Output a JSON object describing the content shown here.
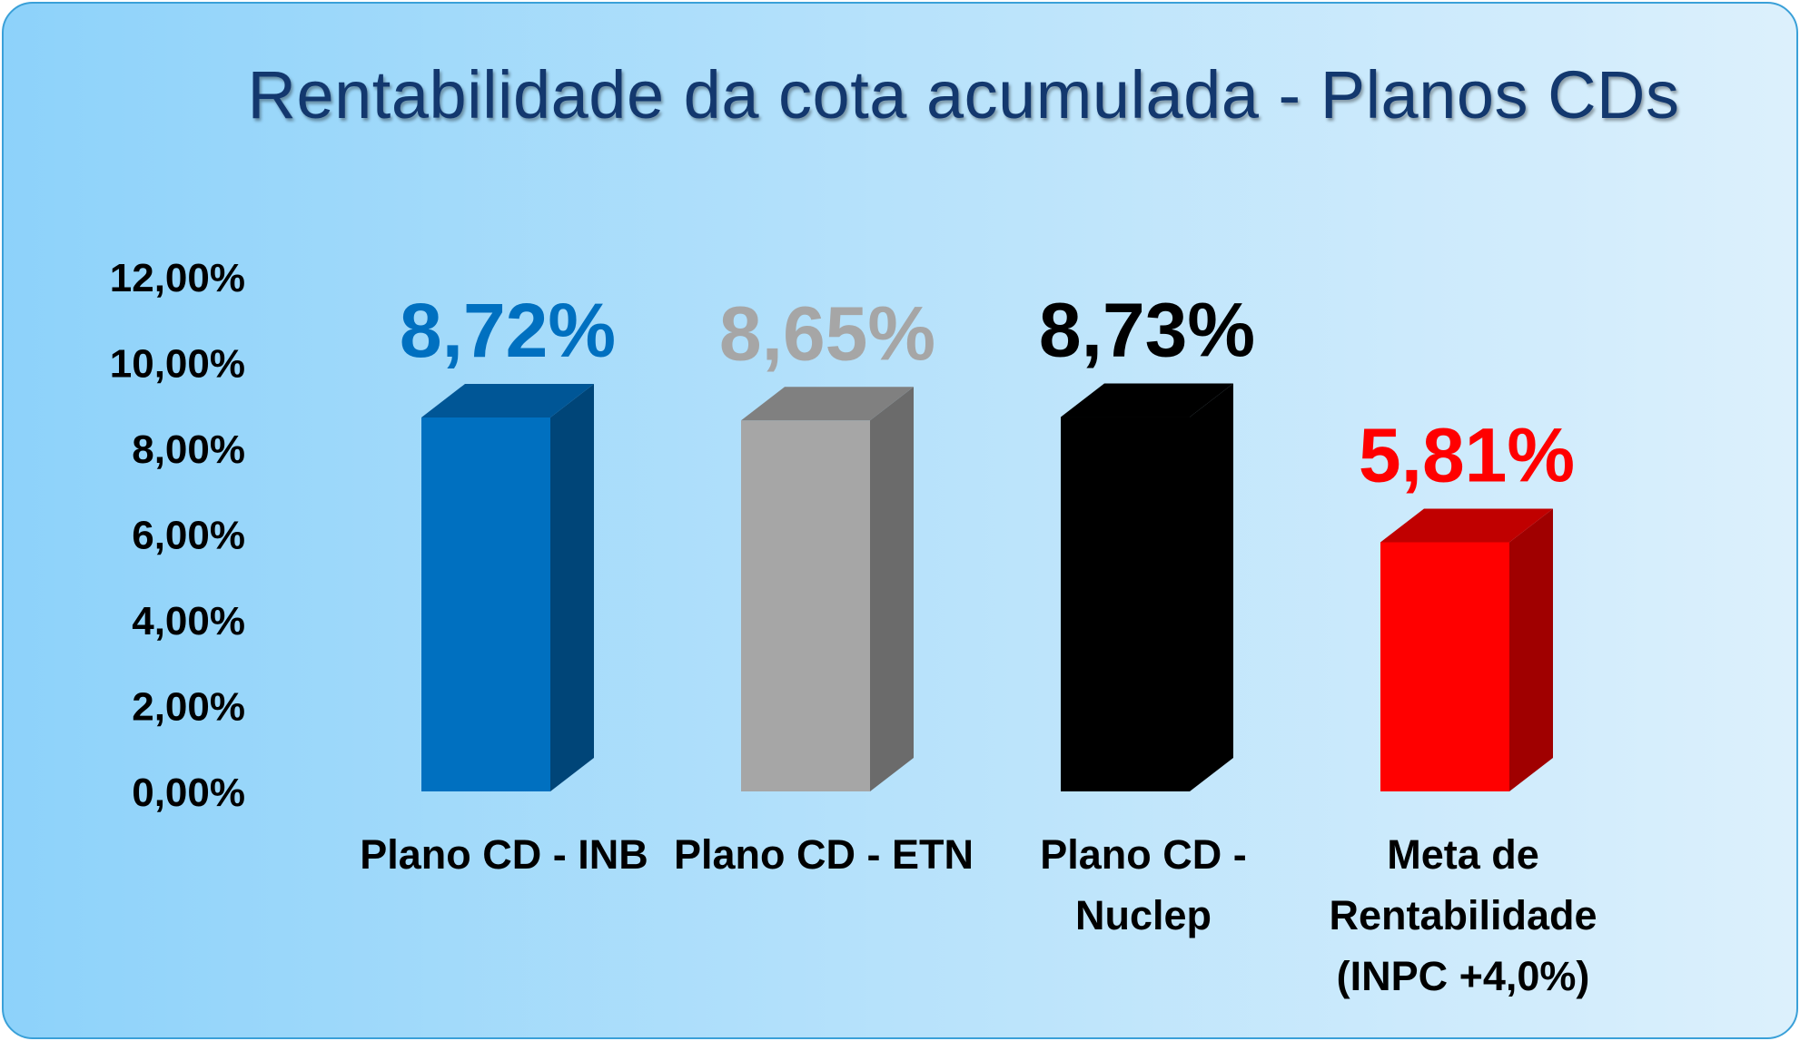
{
  "chart_data": {
    "type": "bar",
    "title": "Rentabilidade da cota acumulada - Planos CDs",
    "xlabel": "",
    "ylabel": "",
    "ylim": [
      0,
      12
    ],
    "yticks": [
      "0,00%",
      "2,00%",
      "4,00%",
      "6,00%",
      "8,00%",
      "10,00%",
      "12,00%"
    ],
    "grid": false,
    "legend": "none",
    "categories": [
      [
        "Plano CD - INB"
      ],
      [
        "Plano CD - ETN"
      ],
      [
        "Plano CD -",
        "Nuclep"
      ],
      [
        "Meta de",
        "Rentabilidade",
        "(INPC +4,0%)"
      ]
    ],
    "values": [
      8.72,
      8.65,
      8.73,
      5.81
    ],
    "data_labels": [
      "8,72%",
      "8,65%",
      "8,73%",
      "5,81%"
    ],
    "colors": [
      {
        "front": "#0070c0",
        "side": "#004578",
        "top": "#005696",
        "label": "#0070c0"
      },
      {
        "front": "#a6a6a6",
        "side": "#6b6b6b",
        "top": "#808080",
        "label": "#a6a6a6"
      },
      {
        "front": "#000000",
        "side": "#000000",
        "top": "#000000",
        "label": "#000000"
      },
      {
        "front": "#ff0000",
        "side": "#a00000",
        "top": "#c00000",
        "label": "#ff0000"
      }
    ]
  }
}
